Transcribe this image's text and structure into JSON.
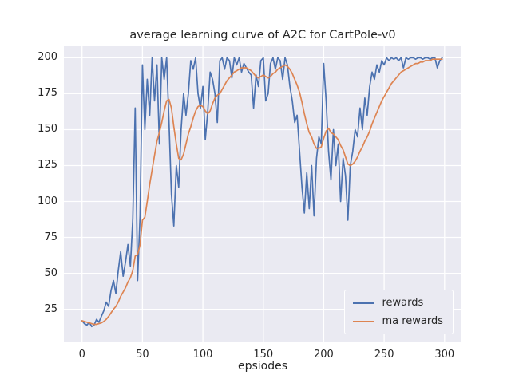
{
  "figure": {
    "title": "average learning curve of A2C for CartPole-v0",
    "xlabel": "epsiodes"
  },
  "chart_data": {
    "type": "line",
    "title": "average learning curve of A2C for CartPole-v0",
    "xlabel": "epsiodes",
    "ylabel": "",
    "xlim": [
      -15,
      314
    ],
    "ylim": [
      2,
      208
    ],
    "xticks": [
      0,
      50,
      100,
      150,
      200,
      250,
      300
    ],
    "yticks": [
      25,
      50,
      75,
      100,
      125,
      150,
      175,
      200
    ],
    "grid": true,
    "grid_color": "#ffffff",
    "axes_background": "#eaeaf2",
    "legend_position": "lower right",
    "x": [
      0,
      2,
      4,
      6,
      8,
      10,
      12,
      14,
      16,
      18,
      20,
      22,
      24,
      26,
      28,
      30,
      32,
      34,
      36,
      38,
      40,
      42,
      44,
      46,
      48,
      50,
      52,
      54,
      56,
      58,
      60,
      62,
      64,
      66,
      68,
      70,
      72,
      74,
      76,
      78,
      80,
      82,
      84,
      86,
      88,
      90,
      92,
      94,
      96,
      98,
      100,
      102,
      104,
      106,
      108,
      110,
      112,
      114,
      116,
      118,
      120,
      122,
      124,
      126,
      128,
      130,
      132,
      134,
      136,
      138,
      140,
      142,
      144,
      146,
      148,
      150,
      152,
      154,
      156,
      158,
      160,
      162,
      164,
      166,
      168,
      170,
      172,
      174,
      176,
      178,
      180,
      182,
      184,
      186,
      188,
      190,
      192,
      194,
      196,
      198,
      200,
      202,
      204,
      206,
      208,
      210,
      212,
      214,
      216,
      218,
      220,
      222,
      224,
      226,
      228,
      230,
      232,
      234,
      236,
      238,
      240,
      242,
      244,
      246,
      248,
      250,
      252,
      254,
      256,
      258,
      260,
      262,
      264,
      266,
      268,
      270,
      272,
      274,
      276,
      278,
      280,
      282,
      284,
      286,
      288,
      290,
      292,
      294,
      296,
      298
    ],
    "series": [
      {
        "name": "rewards",
        "color": "#4c72b0",
        "values": [
          17,
          15,
          14,
          16,
          13,
          14,
          18,
          16,
          20,
          24,
          30,
          27,
          38,
          45,
          36,
          52,
          65,
          48,
          58,
          70,
          55,
          88,
          165,
          45,
          90,
          195,
          150,
          185,
          160,
          200,
          170,
          195,
          140,
          200,
          185,
          200,
          155,
          105,
          83,
          125,
          110,
          150,
          175,
          160,
          175,
          198,
          192,
          200,
          175,
          165,
          180,
          143,
          162,
          190,
          185,
          175,
          155,
          198,
          200,
          192,
          200,
          198,
          186,
          200,
          195,
          200,
          190,
          196,
          193,
          190,
          188,
          165,
          188,
          180,
          198,
          200,
          170,
          175,
          196,
          200,
          192,
          200,
          198,
          185,
          200,
          195,
          180,
          170,
          155,
          160,
          135,
          110,
          92,
          120,
          95,
          125,
          90,
          130,
          145,
          140,
          196,
          170,
          135,
          115,
          150,
          125,
          140,
          100,
          130,
          118,
          87,
          125,
          135,
          150,
          145,
          165,
          150,
          172,
          160,
          180,
          190,
          185,
          195,
          190,
          198,
          195,
          200,
          198,
          200,
          199,
          200,
          198,
          200,
          193,
          200,
          199,
          200,
          200,
          199,
          200,
          200,
          199,
          200,
          200,
          199,
          200,
          200,
          193,
          198,
          200
        ]
      },
      {
        "name": "ma rewards",
        "color": "#dd8452",
        "values": [
          17,
          16.5,
          16,
          15.5,
          15,
          14.5,
          14.5,
          15,
          15.5,
          16.5,
          18,
          20,
          22.5,
          25,
          27,
          30,
          34,
          37,
          40,
          44,
          47,
          52,
          62,
          63,
          70,
          87,
          89,
          100,
          112,
          122,
          132,
          142,
          148,
          155,
          163,
          170,
          171,
          165,
          152,
          140,
          130,
          129,
          133,
          140,
          147,
          152,
          158,
          163,
          166,
          167,
          166,
          163,
          161,
          163,
          168,
          172,
          174,
          175,
          178,
          181,
          184,
          186,
          188,
          190,
          191,
          192,
          193,
          193,
          193,
          192,
          191,
          189,
          187,
          186,
          187,
          188,
          187,
          186,
          187,
          189,
          190,
          192,
          193,
          194,
          195,
          194,
          192,
          189,
          185,
          181,
          176,
          169,
          161,
          154,
          148,
          145,
          140,
          137,
          137,
          138,
          144,
          149,
          151,
          148,
          147,
          145,
          143,
          139,
          136,
          131,
          126,
          125,
          126,
          128,
          131,
          135,
          138,
          142,
          145,
          149,
          154,
          158,
          162,
          166,
          170,
          173,
          176,
          179,
          182,
          184,
          186,
          188,
          190,
          191,
          192,
          193,
          194,
          195,
          196,
          196,
          197,
          197,
          198,
          198,
          198,
          199,
          199,
          199,
          199,
          199
        ]
      }
    ]
  }
}
